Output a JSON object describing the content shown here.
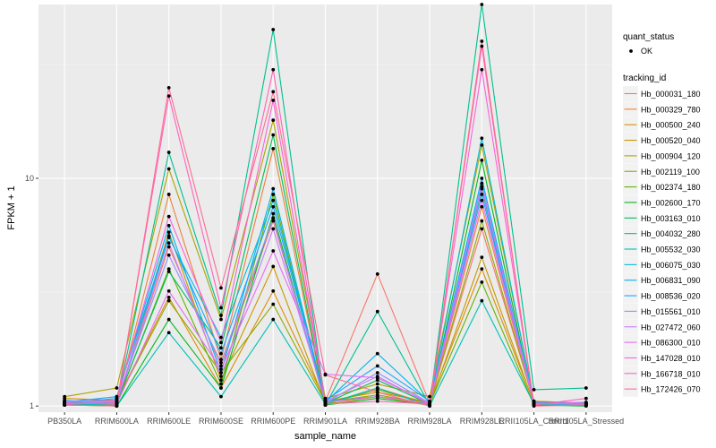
{
  "chart_data": {
    "type": "line",
    "xlabel": "sample_name",
    "ylabel": "FPKM + 1",
    "y_scale": "log10",
    "ylim": [
      0.94,
      58
    ],
    "y_ticks": [
      1,
      10
    ],
    "y_tick_labels": [
      "1",
      "10"
    ],
    "grid": true,
    "categories": [
      "PB350LA",
      "RRIM600LA",
      "RRIM600LE",
      "RRIM600SE",
      "RRIM600PE",
      "RRIM901LA",
      "RRIM928BA",
      "RRIM928LA",
      "RRIM928LE",
      "RRII105LA_Control",
      "RRII105LA_Stressed"
    ],
    "legend_position": "right",
    "point_legend": {
      "title": "quant_status",
      "items": [
        "OK"
      ]
    },
    "color_legend_title": "tracking_id",
    "series": [
      {
        "name": "Hb_000031_180",
        "color": "#F8766D",
        "values": [
          1.03,
          1.02,
          5.0,
          1.5,
          6.5,
          1.05,
          3.8,
          1.03,
          6.0,
          1.05,
          1.03
        ]
      },
      {
        "name": "Hb_000329_780",
        "color": "#EC8239",
        "values": [
          1.05,
          1.03,
          8.5,
          1.6,
          13.5,
          1.02,
          1.2,
          1.02,
          7.5,
          1.02,
          1.02
        ]
      },
      {
        "name": "Hb_000500_240",
        "color": "#DB8E00",
        "values": [
          1.08,
          1.06,
          3.0,
          1.2,
          3.2,
          1.05,
          1.15,
          1.04,
          4.0,
          1.03,
          1.02
        ]
      },
      {
        "name": "Hb_000520_040",
        "color": "#C79800",
        "values": [
          1.02,
          1.01,
          5.8,
          1.3,
          4.1,
          1.02,
          1.1,
          1.01,
          4.5,
          1.02,
          1.01
        ]
      },
      {
        "name": "Hb_000904_120",
        "color": "#AEA200",
        "values": [
          1.1,
          1.2,
          11.0,
          2.4,
          18.0,
          1.08,
          1.25,
          1.1,
          14.0,
          1.05,
          1.03
        ]
      },
      {
        "name": "Hb_002119_100",
        "color": "#8FAA00",
        "values": [
          1.04,
          1.05,
          2.9,
          1.4,
          2.8,
          1.04,
          1.12,
          1.02,
          6.5,
          1.03,
          1.02
        ]
      },
      {
        "name": "Hb_002374_180",
        "color": "#64B200",
        "values": [
          1.02,
          1.03,
          4.0,
          1.25,
          8.5,
          1.02,
          1.18,
          1.02,
          3.5,
          1.01,
          1.01
        ]
      },
      {
        "name": "Hb_002600_170",
        "color": "#00B81B",
        "values": [
          1.01,
          1.0,
          2.4,
          1.2,
          7.0,
          1.01,
          1.08,
          1.01,
          12.0,
          1.01,
          1.0
        ]
      },
      {
        "name": "Hb_003163_010",
        "color": "#00BD5C",
        "values": [
          1.03,
          1.04,
          3.9,
          1.8,
          15.5,
          1.03,
          1.3,
          1.02,
          9.0,
          1.02,
          1.02
        ]
      },
      {
        "name": "Hb_004032_280",
        "color": "#00C08E",
        "values": [
          1.01,
          1.02,
          13.0,
          2.5,
          45.0,
          1.01,
          2.6,
          1.01,
          58.0,
          1.18,
          1.2
        ]
      },
      {
        "name": "Hb_005532_030",
        "color": "#00C1B2",
        "values": [
          1.02,
          1.0,
          2.1,
          1.1,
          2.4,
          1.02,
          1.2,
          1.0,
          2.9,
          1.02,
          1.01
        ]
      },
      {
        "name": "Hb_006075_030",
        "color": "#00BCD6",
        "values": [
          1.06,
          1.03,
          5.5,
          2.0,
          8.0,
          1.05,
          1.1,
          1.03,
          15.0,
          1.04,
          1.01
        ]
      },
      {
        "name": "Hb_006831_090",
        "color": "#00B2F3",
        "values": [
          1.03,
          1.08,
          6.2,
          1.4,
          9.0,
          1.04,
          1.7,
          1.04,
          10.0,
          1.03,
          1.02
        ]
      },
      {
        "name": "Hb_008536_020",
        "color": "#1FA2FF",
        "values": [
          1.04,
          1.1,
          5.6,
          1.7,
          7.5,
          1.06,
          1.5,
          1.05,
          8.5,
          1.04,
          1.03
        ]
      },
      {
        "name": "Hb_015561_010",
        "color": "#8B93FF",
        "values": [
          1.02,
          1.05,
          4.6,
          1.55,
          6.7,
          1.03,
          1.4,
          1.03,
          9.5,
          1.02,
          1.02
        ]
      },
      {
        "name": "Hb_027472_060",
        "color": "#C77CFF",
        "values": [
          1.05,
          1.04,
          5.2,
          1.35,
          6.0,
          1.05,
          1.35,
          1.02,
          9.2,
          1.03,
          1.02
        ]
      },
      {
        "name": "Hb_086300_010",
        "color": "#E76BF3",
        "values": [
          1.03,
          1.02,
          3.2,
          1.45,
          4.8,
          1.38,
          1.33,
          1.03,
          8.0,
          1.02,
          1.04
        ]
      },
      {
        "name": "Hb_147028_010",
        "color": "#FA62DB",
        "values": [
          1.04,
          1.06,
          6.8,
          1.9,
          22.0,
          1.04,
          1.1,
          1.03,
          30.0,
          1.03,
          1.02
        ]
      },
      {
        "name": "Hb_166718_010",
        "color": "#FF62BC",
        "values": [
          1.02,
          1.03,
          23.0,
          2.7,
          30.0,
          1.02,
          1.05,
          1.02,
          38.0,
          1.01,
          1.08
        ]
      },
      {
        "name": "Hb_172426_070",
        "color": "#FF6C91",
        "values": [
          1.01,
          1.0,
          25.0,
          3.3,
          24.0,
          1.37,
          1.15,
          1.0,
          40.0,
          1.0,
          1.01
        ]
      }
    ]
  }
}
